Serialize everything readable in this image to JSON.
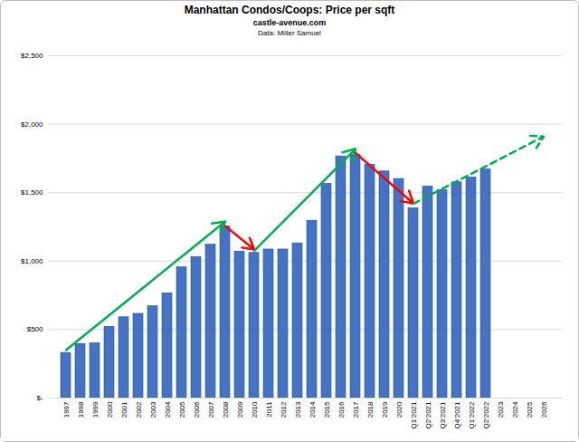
{
  "chart_data": {
    "type": "bar",
    "title": "Manhattan Condos/Coops: Price per sqft",
    "subtitle": [
      "castle-avenue.com",
      "Data: Miller Samuel"
    ],
    "categories": [
      "1997",
      "1998",
      "1999",
      "2000",
      "2001",
      "2002",
      "2003",
      "2004",
      "2005",
      "2006",
      "2007",
      "2008",
      "2009",
      "2010",
      "2011",
      "2012",
      "2013",
      "2014",
      "2015",
      "2016",
      "2017",
      "2018",
      "2019",
      "2020",
      "Q1'2021",
      "Q2'2021",
      "Q3'2021",
      "Q4'2021",
      "Q1'2022",
      "Q2'2022",
      "2023",
      "2024",
      "2025",
      "2026"
    ],
    "values": [
      330,
      395,
      400,
      520,
      590,
      615,
      670,
      765,
      955,
      1030,
      1120,
      1255,
      1070,
      1060,
      1085,
      1085,
      1130,
      1295,
      1565,
      1765,
      1775,
      1705,
      1655,
      1600,
      1385,
      1545,
      1520,
      1575,
      1610,
      1670,
      null,
      null,
      null,
      null
    ],
    "color": "#4472c4",
    "ylim": [
      0,
      2500
    ],
    "yticks": [
      {
        "value": 0,
        "label": "$-"
      },
      {
        "value": 500,
        "label": "$500"
      },
      {
        "value": 1000,
        "label": "$1,000"
      },
      {
        "value": 1500,
        "label": "$1,500"
      },
      {
        "value": 2000,
        "label": "$2,000"
      },
      {
        "value": 2500,
        "label": "$2,500"
      }
    ],
    "grid": true,
    "arrows": [
      {
        "from": "1997",
        "from_value": 350,
        "to": "2008",
        "to_value": 1290,
        "color": "#00b050",
        "line_style": "solid"
      },
      {
        "from": "2008",
        "from_value": 1255,
        "to": "2010",
        "to_value": 1085,
        "color": "#ff0000",
        "line_style": "solid"
      },
      {
        "from": "2010",
        "from_value": 1075,
        "to": "2017",
        "to_value": 1820,
        "color": "#00b050",
        "line_style": "solid"
      },
      {
        "from": "2017",
        "from_value": 1790,
        "to": "Q1'2021",
        "to_value": 1420,
        "color": "#ff0000",
        "line_style": "solid"
      },
      {
        "from": "Q1'2021",
        "from_value": 1420,
        "to": "2026",
        "to_value": 1910,
        "color": "#00b050",
        "line_style": "dashed"
      }
    ]
  }
}
